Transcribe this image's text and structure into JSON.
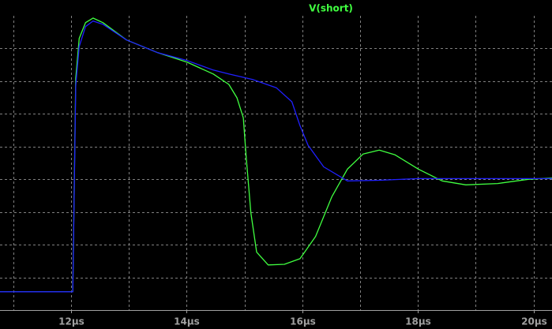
{
  "chart_data": {
    "type": "line",
    "series": [
      {
        "name": "V(short)",
        "color": "#40ff40",
        "x": [
          10.77,
          12.03,
          12.08,
          12.14,
          12.25,
          12.38,
          12.55,
          12.96,
          13.5,
          14.01,
          14.46,
          14.73,
          14.87,
          14.98,
          15.03,
          15.11,
          15.21,
          15.41,
          15.69,
          15.96,
          16.23,
          16.51,
          16.78,
          17.05,
          17.33,
          17.6,
          18.01,
          18.42,
          18.83,
          19.38,
          19.92,
          20.32
        ],
        "values": [
          0.56,
          0.56,
          7.09,
          8.31,
          8.79,
          8.93,
          8.79,
          8.26,
          7.87,
          7.58,
          7.22,
          6.9,
          6.49,
          5.88,
          4.67,
          2.97,
          1.77,
          1.38,
          1.4,
          1.57,
          2.25,
          3.46,
          4.31,
          4.77,
          4.89,
          4.75,
          4.31,
          3.95,
          3.83,
          3.87,
          4.0,
          4.04
        ]
      },
      {
        "color": "#2020ff",
        "x": [
          10.77,
          12.03,
          12.08,
          12.14,
          12.25,
          12.38,
          12.55,
          12.96,
          13.5,
          14.01,
          14.46,
          14.73,
          15.14,
          15.55,
          15.82,
          15.96,
          16.1,
          16.37,
          16.78,
          17.33,
          18.01,
          18.97,
          20.32
        ],
        "values": [
          0.56,
          0.56,
          6.85,
          8.06,
          8.67,
          8.84,
          8.74,
          8.26,
          7.87,
          7.63,
          7.34,
          7.22,
          7.05,
          6.8,
          6.37,
          5.64,
          5.04,
          4.38,
          3.95,
          3.97,
          4.02,
          4.02,
          4.02
        ]
      }
    ],
    "xlim": [
      10.77,
      20.32
    ],
    "xticks": [
      {
        "value": 12,
        "label": "12µs"
      },
      {
        "value": 14,
        "label": "14µs"
      },
      {
        "value": 16,
        "label": "16µs"
      },
      {
        "value": 18,
        "label": "18µs"
      },
      {
        "value": 20,
        "label": "20µs"
      }
    ],
    "x_minor_ticks": [
      11,
      13,
      15,
      17,
      19
    ],
    "ylim": [
      0,
      9
    ],
    "yticks": [
      1,
      2,
      3,
      4,
      5,
      6,
      7,
      8
    ],
    "grid": true
  }
}
